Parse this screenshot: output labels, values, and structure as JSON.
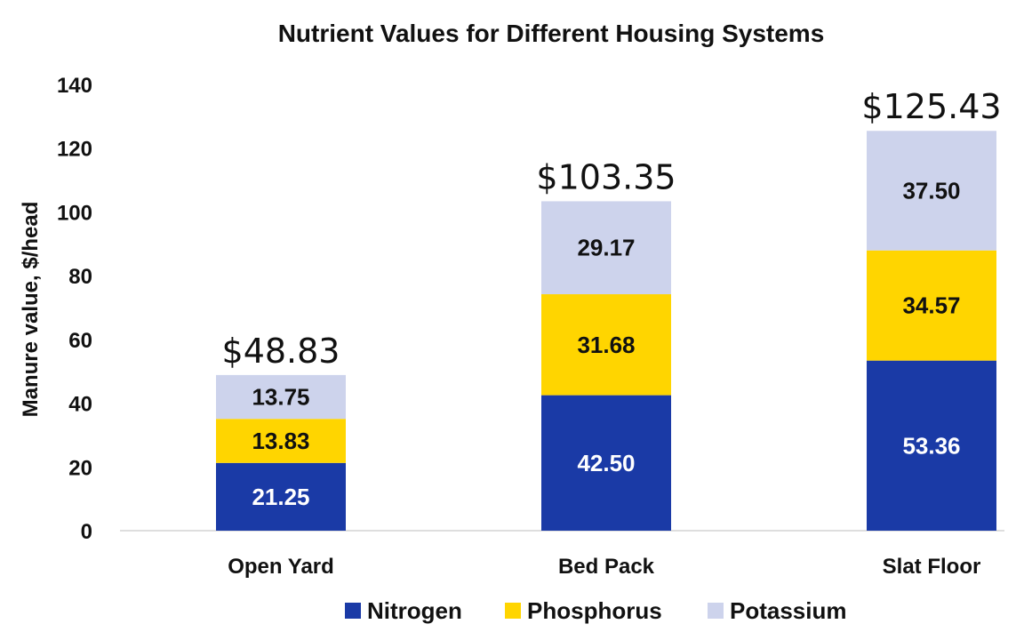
{
  "chart_data": {
    "type": "bar",
    "stacked": true,
    "title": "Nutrient Values for Different Housing Systems",
    "xlabel": "",
    "ylabel": "Manure value, $/head",
    "ylim": [
      0,
      140
    ],
    "yticks": [
      0,
      20,
      40,
      60,
      80,
      100,
      120,
      140
    ],
    "categories": [
      "Open Yard",
      "Bed Pack",
      "Slat Floor"
    ],
    "series": [
      {
        "name": "Nitrogen",
        "color": "#1a3aa6",
        "label_color": "#ffffff",
        "values": [
          21.25,
          42.5,
          53.36
        ],
        "labels": [
          "21.25",
          "42.50",
          "53.36"
        ]
      },
      {
        "name": "Phosphorus",
        "color": "#ffd500",
        "label_color": "#111111",
        "values": [
          13.83,
          31.68,
          34.57
        ],
        "labels": [
          "13.83",
          "31.68",
          "34.57"
        ]
      },
      {
        "name": "Potassium",
        "color": "#cdd3ec",
        "label_color": "#111111",
        "values": [
          13.75,
          29.17,
          37.5
        ],
        "labels": [
          "13.75",
          "29.17",
          "37.50"
        ]
      }
    ],
    "totals": [
      "$48.83",
      "$103.35",
      "$125.43"
    ],
    "legend_position": "bottom",
    "grid": false
  }
}
